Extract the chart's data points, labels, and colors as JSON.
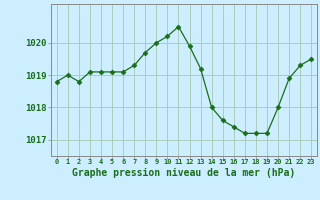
{
  "x": [
    0,
    1,
    2,
    3,
    4,
    5,
    6,
    7,
    8,
    9,
    10,
    11,
    12,
    13,
    14,
    15,
    16,
    17,
    18,
    19,
    20,
    21,
    22,
    23
  ],
  "y": [
    1018.8,
    1019.0,
    1018.8,
    1019.1,
    1019.1,
    1019.1,
    1019.1,
    1019.3,
    1019.7,
    1020.0,
    1020.2,
    1020.5,
    1019.9,
    1019.2,
    1018.0,
    1017.6,
    1017.4,
    1017.2,
    1017.2,
    1017.2,
    1018.0,
    1018.9,
    1019.3,
    1019.5
  ],
  "line_color": "#1a6e1a",
  "marker": "D",
  "marker_size": 2.5,
  "bg_color": "#cceeff",
  "grid_color": "#aaccbb",
  "title": "Graphe pression niveau de la mer (hPa)",
  "ylim": [
    1016.5,
    1021.2
  ],
  "yticks": [
    1017,
    1018,
    1019,
    1020
  ],
  "xticks": [
    0,
    1,
    2,
    3,
    4,
    5,
    6,
    7,
    8,
    9,
    10,
    11,
    12,
    13,
    14,
    15,
    16,
    17,
    18,
    19,
    20,
    21,
    22,
    23
  ],
  "tick_color": "#1a6e1a",
  "axis_color": "#888888",
  "xlabel_fontsize": 7.0,
  "xtick_fontsize": 5.0,
  "ytick_fontsize": 6.5
}
